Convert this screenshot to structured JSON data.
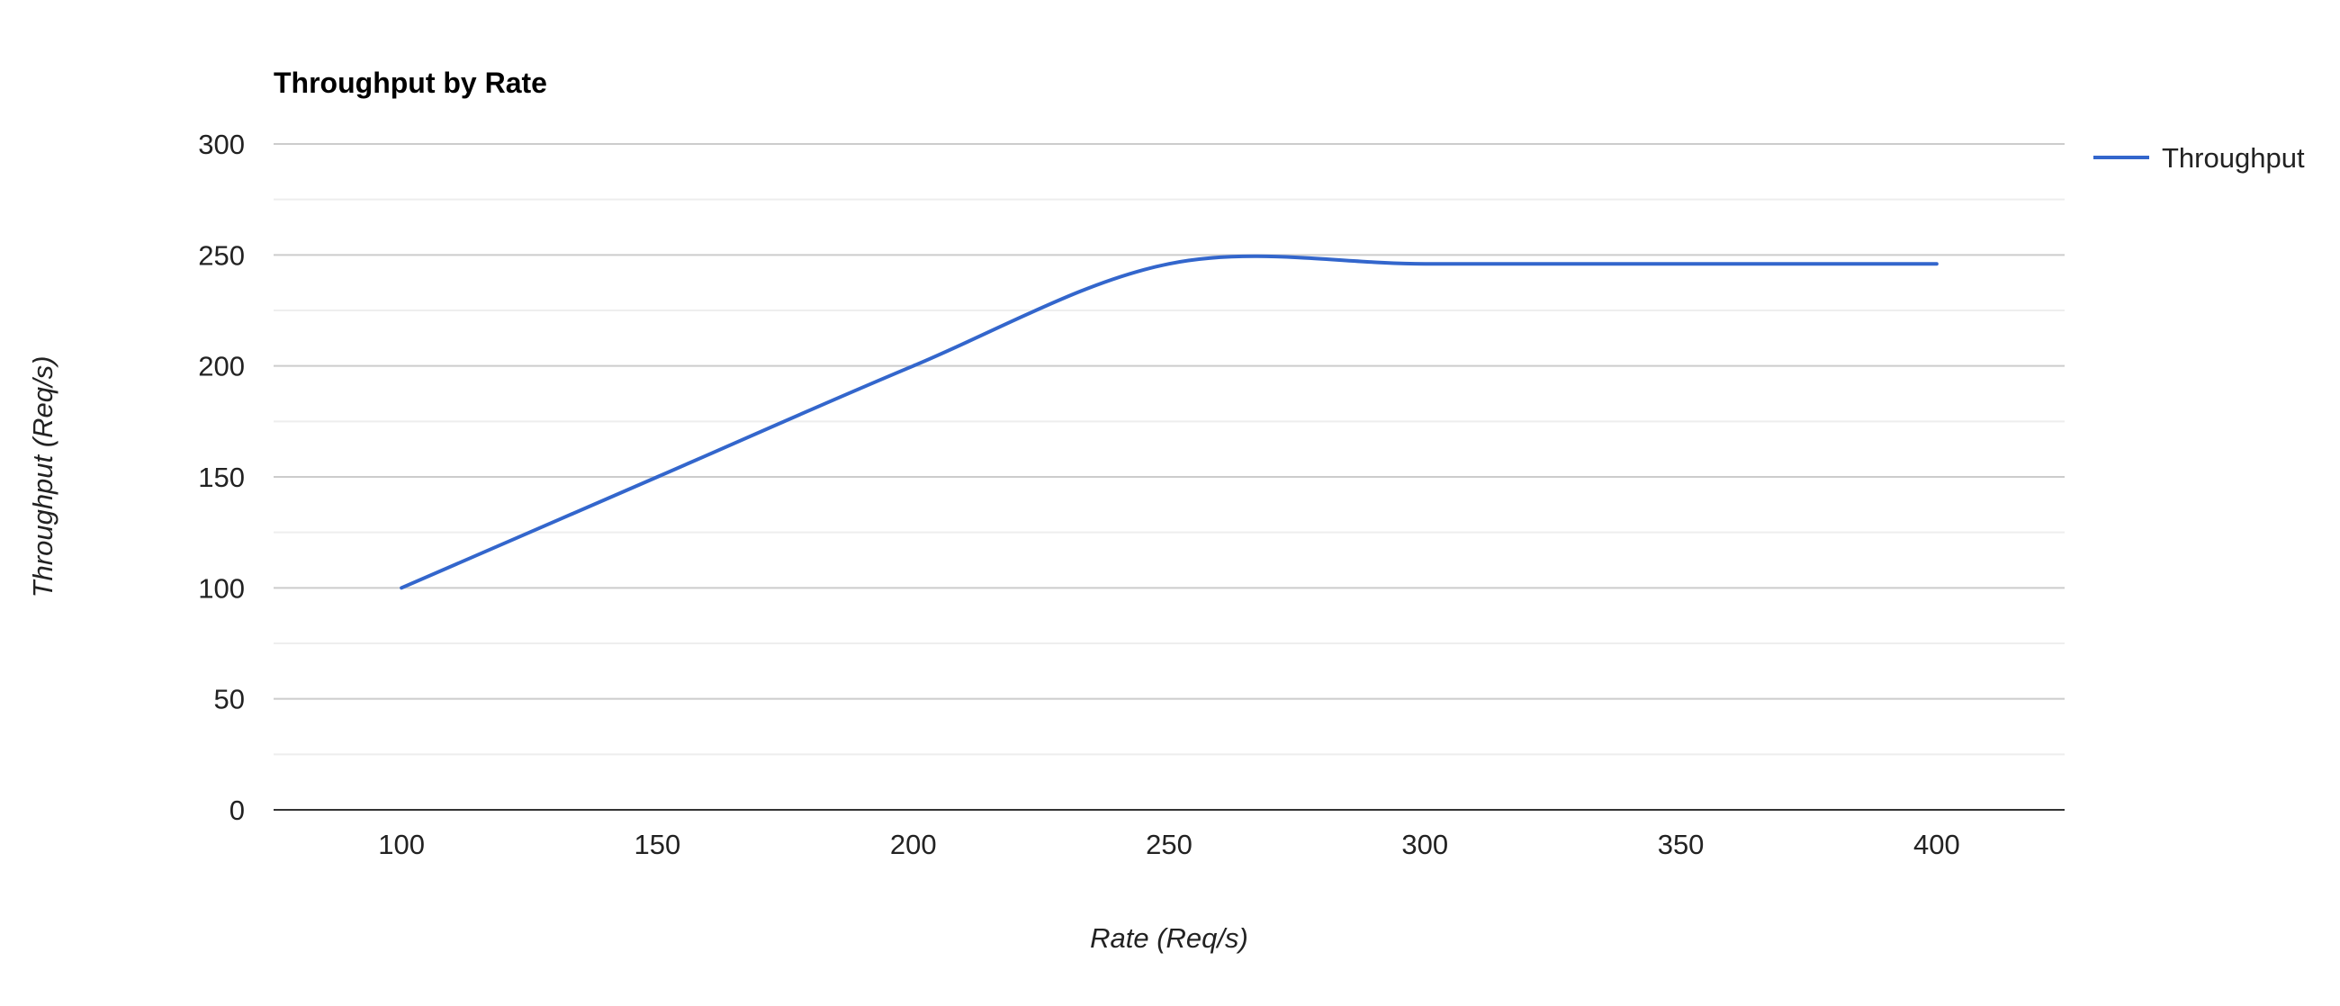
{
  "chart_data": {
    "type": "line",
    "title": "Throughput by Rate",
    "xlabel": "Rate (Req/s)",
    "ylabel": "Throughput (Req/s)",
    "x": [
      100,
      150,
      200,
      250,
      300,
      350,
      400
    ],
    "series": [
      {
        "name": "Throughput",
        "color": "#3366cc",
        "values": [
          100,
          150,
          200,
          246,
          246,
          246,
          246
        ]
      }
    ],
    "xlim": [
      75,
      425
    ],
    "ylim": [
      0,
      300
    ],
    "x_ticks": [
      "100",
      "150",
      "200",
      "250",
      "300",
      "350",
      "400"
    ],
    "y_ticks": [
      "0",
      "50",
      "100",
      "150",
      "200",
      "250",
      "300"
    ],
    "grid": true,
    "curve": "smooth",
    "legend_position": "right"
  }
}
